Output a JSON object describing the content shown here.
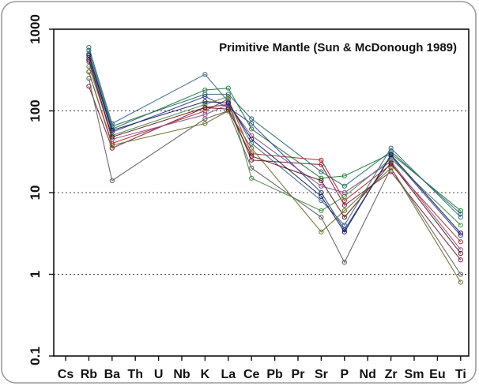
{
  "chart_data": {
    "type": "line",
    "title": "Primitive Mantle (Sun & McDonough 1989)",
    "xlabel": "",
    "ylabel": "",
    "yscale": "log",
    "ylim": [
      0.1,
      1000
    ],
    "y_ticks": [
      "0.1",
      "1",
      "10",
      "100",
      "1000"
    ],
    "grid_lines_at": [
      1,
      10,
      100
    ],
    "grid": "dotted horizontal",
    "categories": [
      "Cs",
      "Rb",
      "Ba",
      "Th",
      "U",
      "Nb",
      "K",
      "La",
      "Ce",
      "Pb",
      "Pr",
      "Sr",
      "P",
      "Nd",
      "Zr",
      "Sm",
      "Eu",
      "Ti"
    ],
    "series": [
      {
        "color": "#7a1f3d",
        "values": [
          null,
          200,
          35,
          null,
          null,
          null,
          110,
          120,
          25,
          null,
          null,
          22,
          7,
          null,
          18,
          null,
          null,
          1.5
        ]
      },
      {
        "color": "#1f7a3a",
        "values": [
          null,
          500,
          60,
          null,
          null,
          null,
          180,
          190,
          60,
          null,
          null,
          15,
          16,
          null,
          30,
          null,
          null,
          6
        ]
      },
      {
        "color": "#b02a2a",
        "values": [
          null,
          300,
          40,
          null,
          null,
          null,
          100,
          140,
          30,
          null,
          null,
          25,
          8,
          null,
          22,
          null,
          null,
          2.5
        ]
      },
      {
        "color": "#2f3f8f",
        "values": [
          null,
          450,
          55,
          null,
          null,
          null,
          150,
          110,
          70,
          null,
          null,
          10,
          3.5,
          null,
          28,
          null,
          null,
          3
        ]
      },
      {
        "color": "#5c5c5c",
        "values": [
          null,
          250,
          14,
          null,
          null,
          null,
          80,
          100,
          20,
          null,
          null,
          5,
          1.4,
          null,
          20,
          null,
          null,
          1
        ]
      },
      {
        "color": "#3d6b8a",
        "values": [
          null,
          600,
          70,
          null,
          null,
          null,
          280,
          130,
          40,
          null,
          null,
          8,
          4,
          null,
          35,
          null,
          null,
          5
        ]
      },
      {
        "color": "#4a8a4a",
        "values": [
          null,
          350,
          50,
          null,
          null,
          null,
          120,
          150,
          15,
          null,
          null,
          6,
          9,
          null,
          26,
          null,
          null,
          4
        ]
      },
      {
        "color": "#8a4a8a",
        "values": [
          null,
          400,
          45,
          null,
          null,
          null,
          90,
          120,
          50,
          null,
          null,
          12,
          10,
          null,
          24,
          null,
          null,
          2
        ]
      },
      {
        "color": "#2a6a6a",
        "values": [
          null,
          550,
          65,
          null,
          null,
          null,
          160,
          160,
          80,
          null,
          null,
          18,
          12,
          null,
          32,
          null,
          null,
          5.5
        ]
      },
      {
        "color": "#6a6a2a",
        "values": [
          null,
          300,
          38,
          null,
          null,
          null,
          70,
          100,
          35,
          null,
          null,
          3.3,
          6,
          null,
          20,
          null,
          null,
          0.8
        ]
      },
      {
        "color": "#1a1a5a",
        "values": [
          null,
          480,
          58,
          null,
          null,
          null,
          130,
          125,
          45,
          null,
          null,
          9,
          3.3,
          null,
          29,
          null,
          null,
          3.2
        ]
      },
      {
        "color": "#5a1a1a",
        "values": [
          null,
          420,
          48,
          null,
          null,
          null,
          110,
          105,
          28,
          null,
          null,
          14,
          5,
          null,
          23,
          null,
          null,
          1.8
        ]
      }
    ]
  }
}
